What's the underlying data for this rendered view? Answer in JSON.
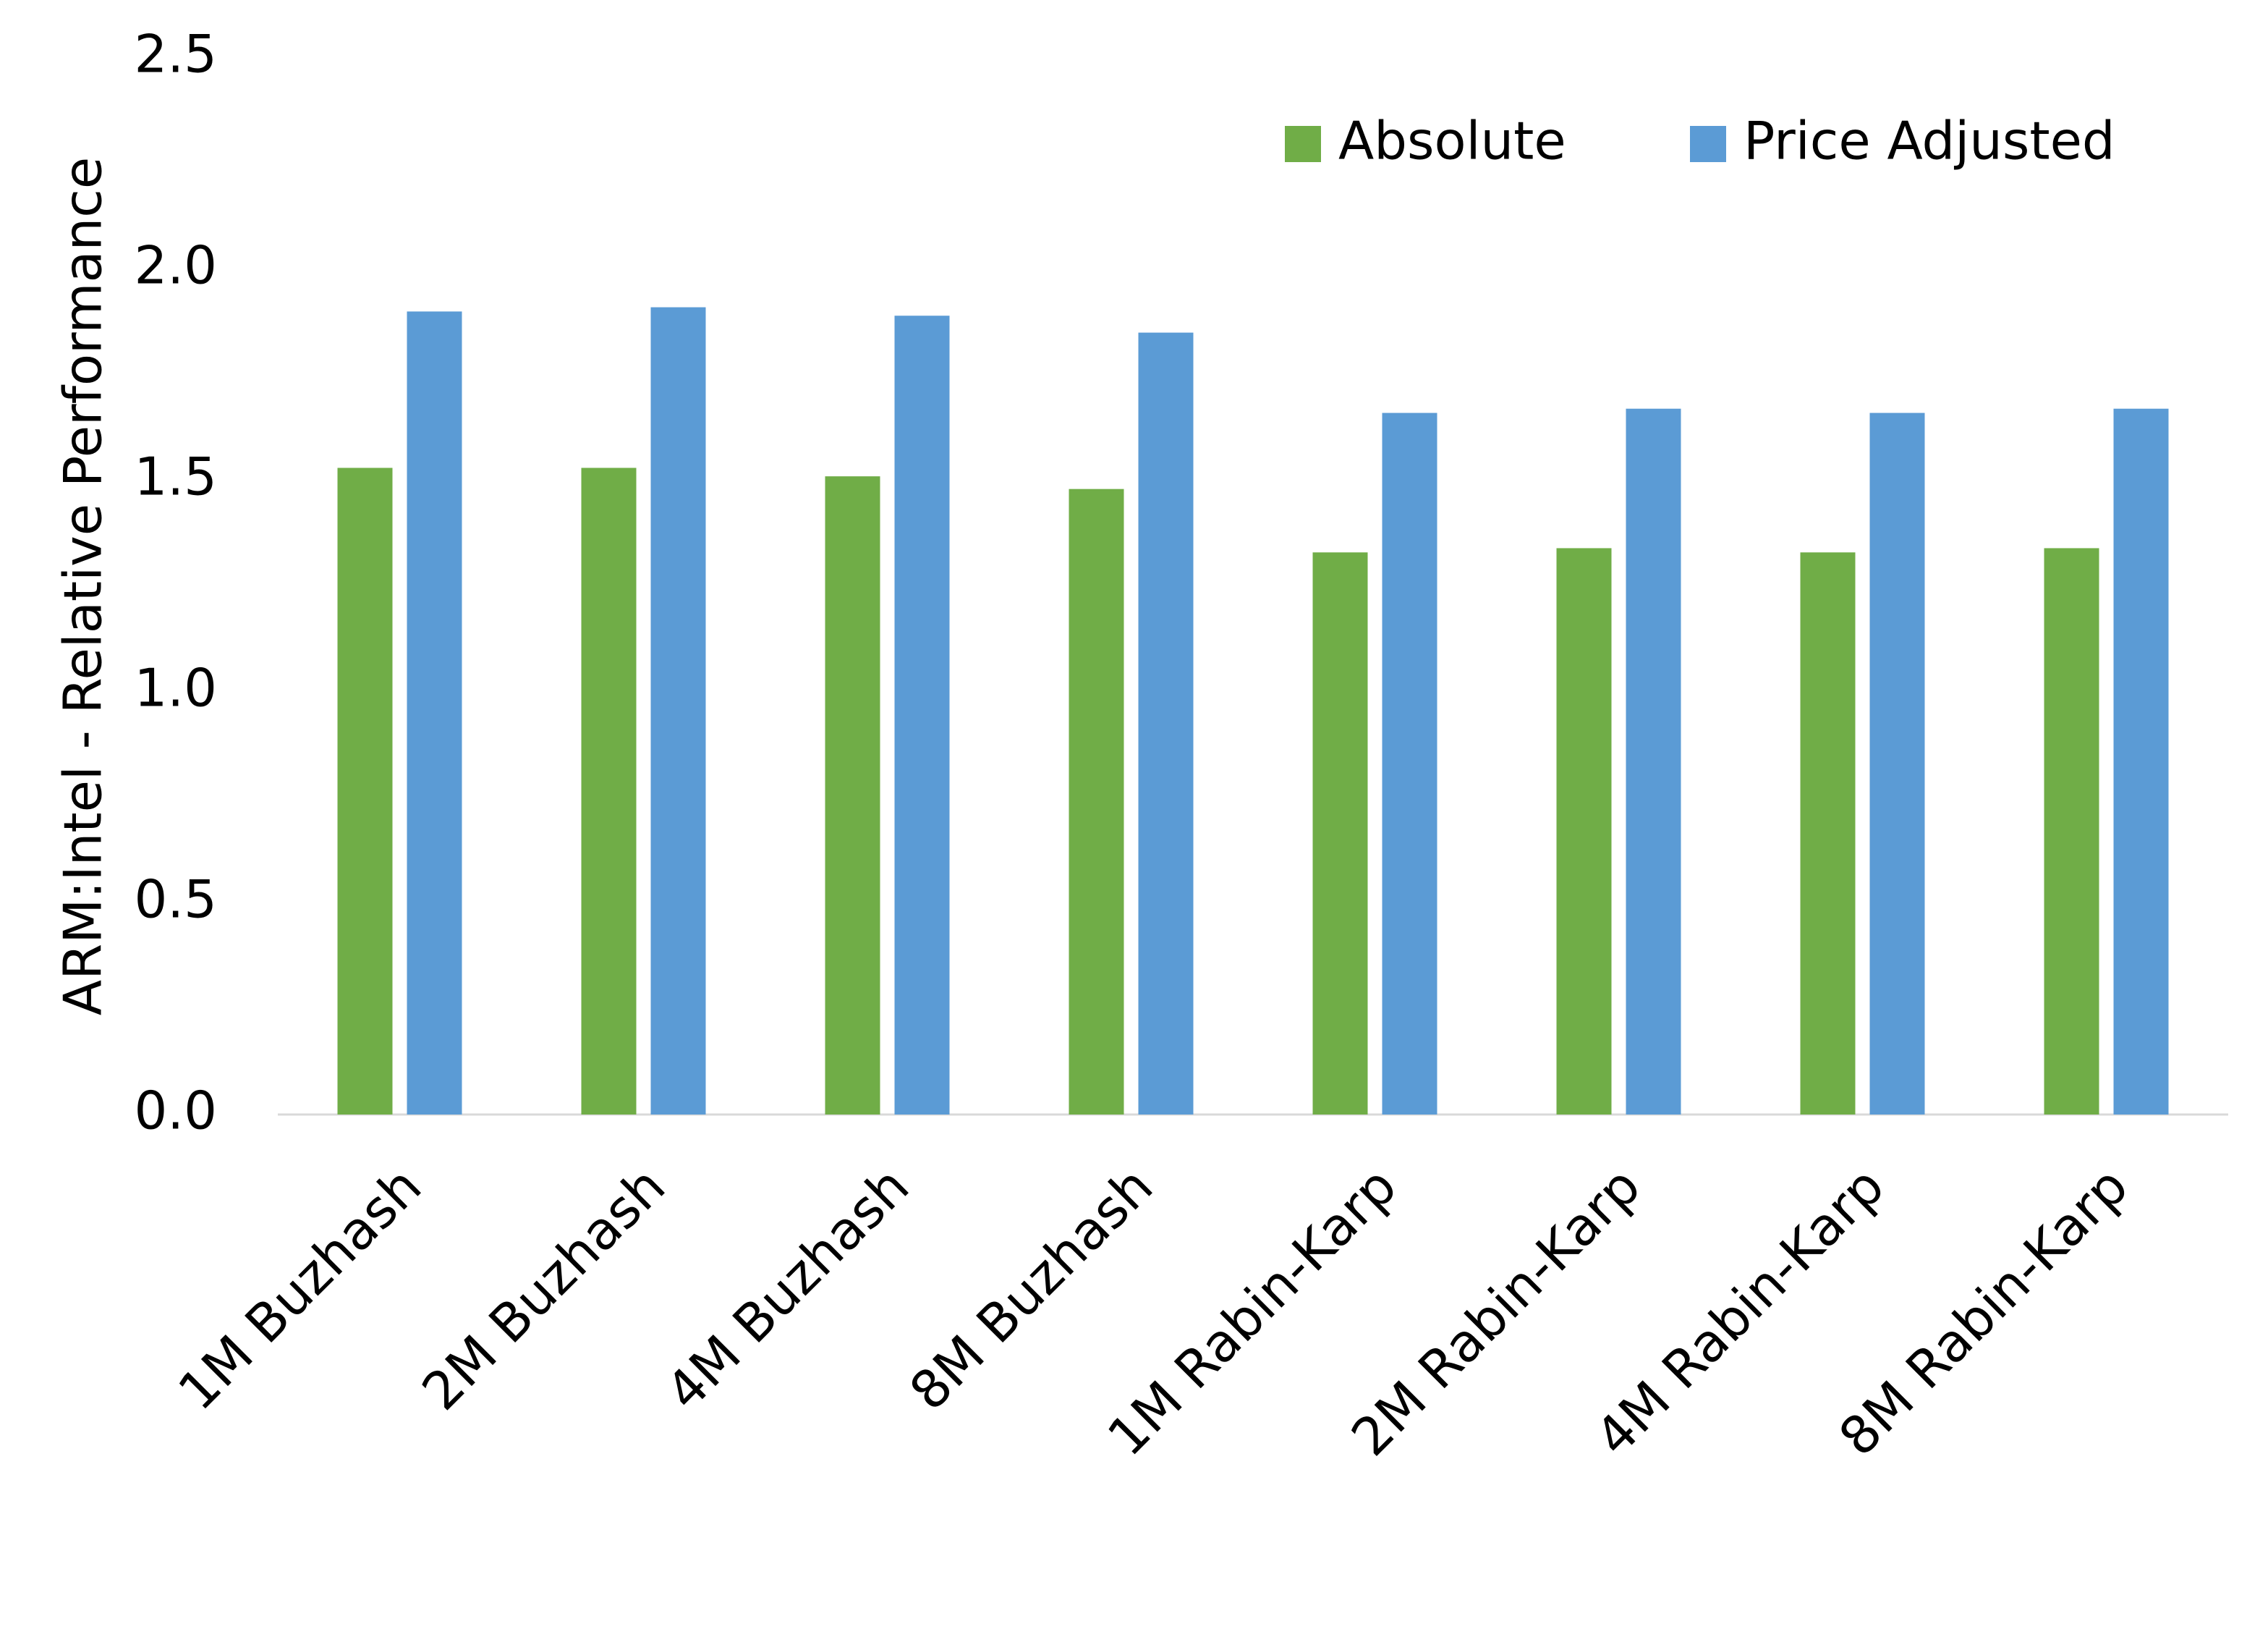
{
  "chart_data": {
    "type": "bar",
    "y_label": "ARM:Intel - Relative Performance",
    "categories": [
      "1M Buzhash",
      "2M Buzhash",
      "4M Buzhash",
      "8M Buzhash",
      "1M Rabin-Karp",
      "2M Rabin-Karp",
      "4M Rabin-Karp",
      "8M Rabin-Karp"
    ],
    "series": [
      {
        "name": "Absolute",
        "color": "#70ad47",
        "values": [
          1.53,
          1.53,
          1.51,
          1.48,
          1.33,
          1.34,
          1.33,
          1.34
        ]
      },
      {
        "name": "Price Adjusted",
        "color": "#5b9bd5",
        "values": [
          1.9,
          1.91,
          1.89,
          1.85,
          1.66,
          1.67,
          1.66,
          1.67
        ]
      }
    ],
    "ylim": [
      0,
      2.5
    ],
    "yticks": [
      {
        "value": 0,
        "label": "0.0"
      },
      0.5,
      {
        "value": 1,
        "label": "1.0"
      },
      1.5,
      {
        "value": 2,
        "label": "2.0"
      },
      2.5
    ],
    "grid": false,
    "legend": "top-right"
  }
}
